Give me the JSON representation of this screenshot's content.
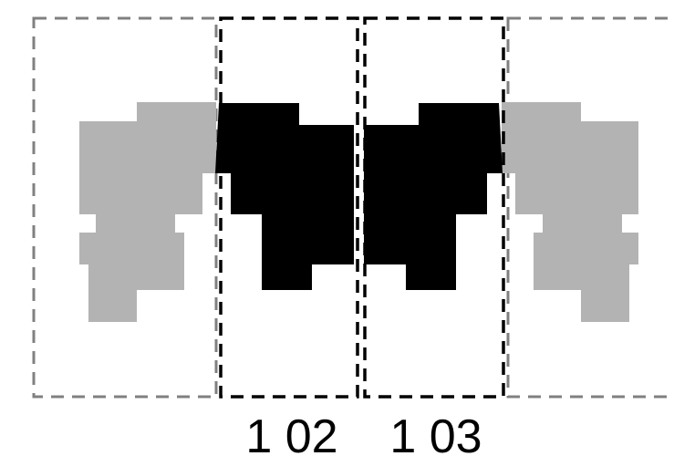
{
  "units": [
    {
      "label": "1 02"
    },
    {
      "label": "1 03"
    }
  ]
}
